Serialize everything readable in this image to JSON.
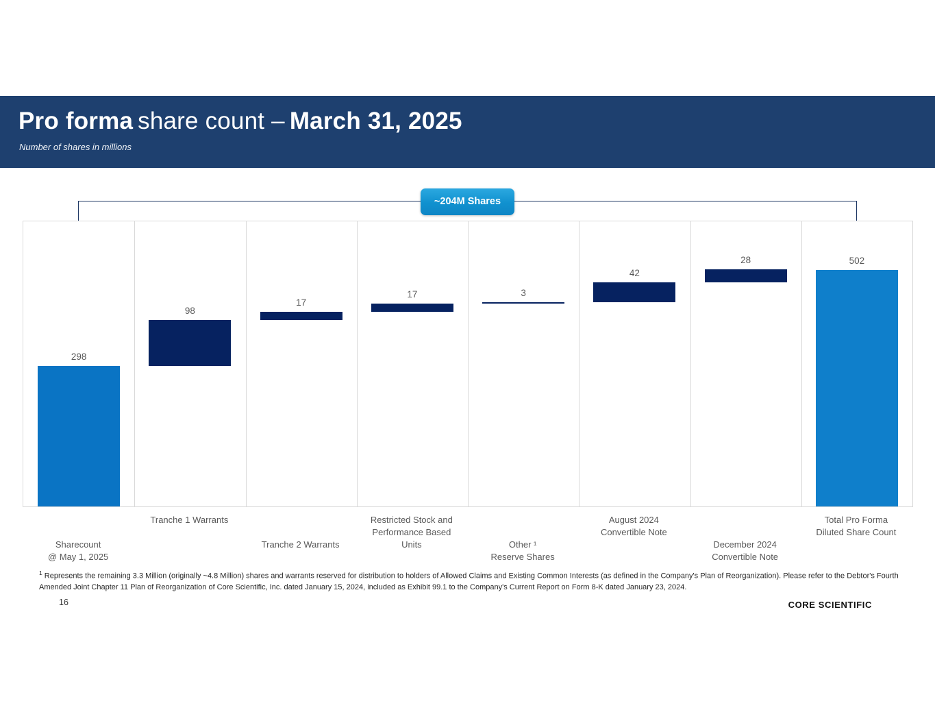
{
  "slide": {
    "title": {
      "bold1": "Pro forma",
      "regular": "share count –",
      "bold2": "March 31, 2025"
    },
    "subtitle": "Number of shares in millions",
    "page_number": "16",
    "logo_text": "CORE SCIENTIFIC",
    "footnote_marker": "1",
    "footnote": "Represents the remaining  3.3 Million (originally ~4.8 Million) shares and warrants reserved for distribution to holders of Allowed Claims and Existing Common Interests (as defined in the Company's Plan of Reorganization). Please refer to the Debtor's Fourth Amended Joint Chapter 11 Plan of Reorganization of Core Scientific, Inc. dated January 15, 2024, included as Exhibit 99.1 to the Company's Current Report on Form 8-K dated January 23, 2024."
  },
  "colors": {
    "header_band": "#1e406f",
    "base_bar": "#0a74c4",
    "step_bar": "#062260",
    "total_bar": "#0f7fcb",
    "bracket_line": "#1f3864",
    "badge_top": "#2ba8e0",
    "badge_bottom": "#0e85c5",
    "gridline": "#d9d9d9",
    "label_gray": "#595959"
  },
  "chart_data": {
    "type": "bar",
    "subtype": "waterfall",
    "title": "Pro forma share count – March 31, 2025",
    "subtitle": "Number of shares in millions",
    "annotation_label": "~204M Shares",
    "annotation_meaning": "sum of dilutive additions between starting sharecount and total",
    "categories": [
      {
        "lines": [
          "Sharecount",
          "@ May 1, 2025"
        ],
        "row": "lower"
      },
      {
        "lines": [
          "Tranche 1 Warrants"
        ],
        "row": "upper"
      },
      {
        "lines": [
          "Tranche 2 Warrants"
        ],
        "row": "lower"
      },
      {
        "lines": [
          "Restricted Stock and",
          "Performance Based",
          "Units"
        ],
        "row": "upper"
      },
      {
        "lines": [
          "Other ¹",
          "Reserve Shares"
        ],
        "row": "lower"
      },
      {
        "lines": [
          "August 2024",
          "Convertible Note"
        ],
        "row": "upper"
      },
      {
        "lines": [
          "December 2024",
          "Convertible Note"
        ],
        "row": "lower"
      },
      {
        "lines": [
          "Total Pro Forma",
          "Diluted Share Count"
        ],
        "row": "upper"
      }
    ],
    "values": [
      298,
      98,
      17,
      17,
      3,
      42,
      28,
      502
    ],
    "value_labels": [
      "298",
      "98",
      "17",
      "17",
      "3",
      "42",
      "28",
      "502"
    ],
    "roles": [
      "base",
      "step",
      "step",
      "step",
      "step",
      "step",
      "step",
      "total"
    ],
    "ylim": [
      0,
      605
    ],
    "grid": "vertical column separators only",
    "legend": "none",
    "xlabel": "",
    "ylabel": ""
  }
}
